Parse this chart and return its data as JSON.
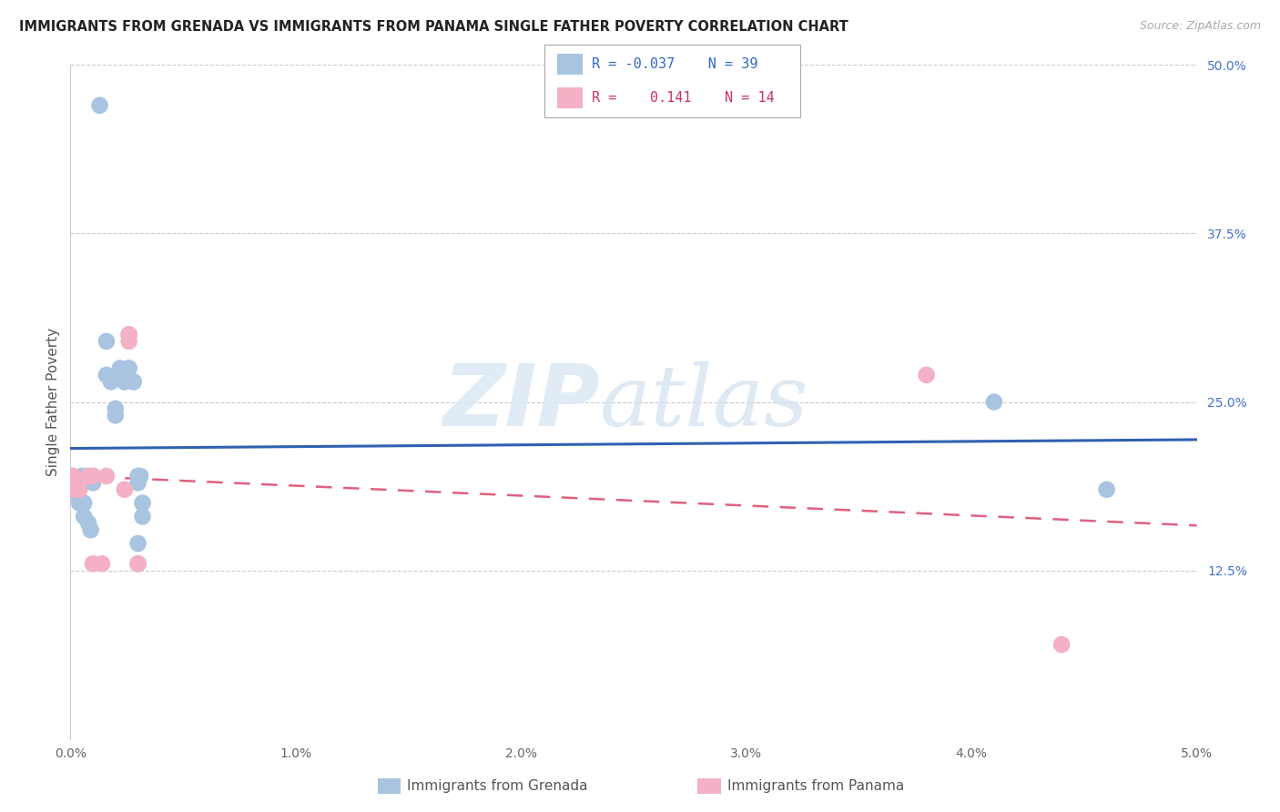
{
  "title": "IMMIGRANTS FROM GRENADA VS IMMIGRANTS FROM PANAMA SINGLE FATHER POVERTY CORRELATION CHART",
  "source": "Source: ZipAtlas.com",
  "ylabel": "Single Father Poverty",
  "grenada_R": "-0.037",
  "grenada_N": "39",
  "panama_R": "0.141",
  "panama_N": "14",
  "grenada_color": "#a8c4e0",
  "panama_color": "#f4b0c4",
  "grenada_line_color": "#3060b0",
  "panama_line_color": "#e06080",
  "watermark_zip": "ZIP",
  "watermark_atlas": "atlas",
  "grenada_x": [
    0.0013,
    0.0016,
    0.0016,
    0.0018,
    0.002,
    0.002,
    0.0022,
    0.0024,
    0.0024,
    0.0026,
    0.0026,
    0.0028,
    0.0028,
    0.003,
    0.003,
    0.003,
    0.003,
    0.0031,
    0.0032,
    0.0032,
    0.0,
    0.0001,
    0.0001,
    0.0002,
    0.0002,
    0.0003,
    0.0003,
    0.0004,
    0.0005,
    0.0005,
    0.0006,
    0.0006,
    0.0007,
    0.0008,
    0.0009,
    0.001,
    0.001,
    0.041,
    0.046
  ],
  "grenada_y": [
    0.47,
    0.295,
    0.27,
    0.265,
    0.245,
    0.24,
    0.275,
    0.265,
    0.265,
    0.3,
    0.275,
    0.265,
    0.265,
    0.195,
    0.19,
    0.145,
    0.13,
    0.195,
    0.175,
    0.165,
    0.195,
    0.195,
    0.19,
    0.19,
    0.185,
    0.185,
    0.18,
    0.175,
    0.195,
    0.175,
    0.175,
    0.165,
    0.195,
    0.16,
    0.155,
    0.195,
    0.19,
    0.25,
    0.185
  ],
  "panama_x": [
    0.0001,
    0.0002,
    0.0004,
    0.0008,
    0.001,
    0.001,
    0.0014,
    0.0016,
    0.0024,
    0.0026,
    0.0026,
    0.003,
    0.038,
    0.044
  ],
  "panama_y": [
    0.195,
    0.185,
    0.185,
    0.195,
    0.195,
    0.13,
    0.13,
    0.195,
    0.185,
    0.3,
    0.295,
    0.13,
    0.27,
    0.07
  ],
  "xlim": [
    0.0,
    0.05
  ],
  "ylim": [
    0.0,
    0.5
  ],
  "x_tick_pos": [
    0.0,
    0.01,
    0.02,
    0.03,
    0.04,
    0.05
  ],
  "x_tick_labels": [
    "0.0%",
    "1.0%",
    "2.0%",
    "3.0%",
    "4.0%",
    "5.0%"
  ],
  "y_tick_pos": [
    0.0,
    0.125,
    0.25,
    0.375,
    0.5
  ],
  "y_tick_labels": [
    "",
    "12.5%",
    "25.0%",
    "37.5%",
    "50.0%"
  ]
}
